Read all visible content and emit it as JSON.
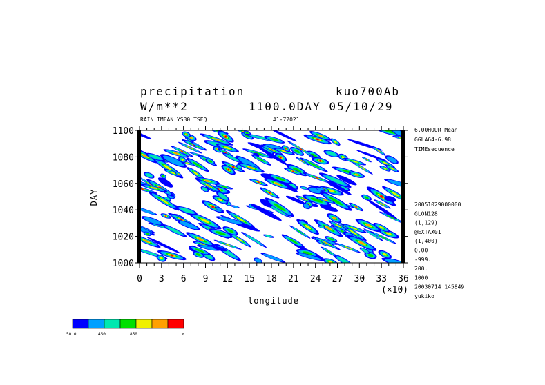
{
  "header": {
    "title_left": "precipitation",
    "title_right": "kuo700Ab",
    "units": "W/m**2",
    "time_label": "1100.0DAY 05/10/29",
    "sub_left": "RAIN TMEAN YS30 TSEQ",
    "sub_right": "#1-72021"
  },
  "side_info": {
    "top": [
      "6.00HOUR Mean",
      "GGLA64-6.98",
      "TIMEsequence"
    ],
    "bottom": [
      "20051029000000",
      "GLON128",
      "(1,129)",
      "@EXTAX01",
      "(1,400)",
      "0.00",
      "-999.",
      "200.",
      "1000",
      "20030714 145849",
      "yukiko"
    ]
  },
  "chart_data": {
    "type": "heatmap",
    "xlabel": "longitude",
    "ylabel": "DAY",
    "x_scale_label": "(×10)",
    "xlim": [
      0,
      36
    ],
    "ylim": [
      1000,
      1100
    ],
    "x_ticks": [
      0,
      3,
      6,
      9,
      12,
      15,
      18,
      21,
      24,
      27,
      30,
      33,
      36
    ],
    "y_ticks": [
      1000,
      1020,
      1040,
      1060,
      1080,
      1100
    ],
    "colorbar": {
      "colors": [
        "#0000ff",
        "#00a0ff",
        "#00e8b0",
        "#00e000",
        "#f0f000",
        "#ffa000",
        "#ff0000"
      ],
      "labels": [
        "50.0",
        "450.",
        "850.",
        "∞"
      ]
    }
  }
}
